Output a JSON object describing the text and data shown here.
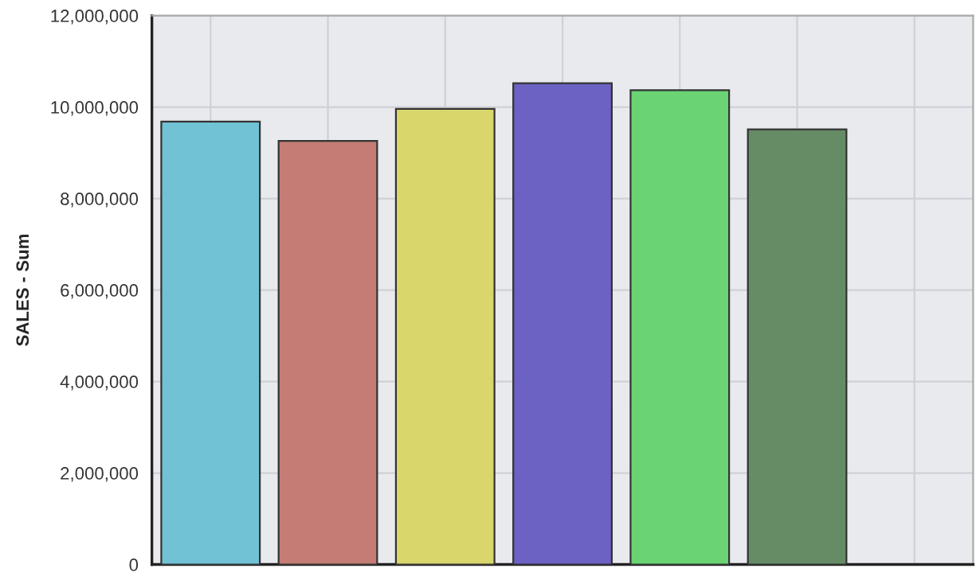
{
  "chart_data": {
    "type": "bar",
    "ylabel": "SALES - Sum",
    "categories": [
      null,
      null,
      null,
      null,
      null,
      null,
      null
    ],
    "values": [
      9680000,
      9260000,
      9960000,
      10520000,
      10370000,
      9510000,
      null
    ],
    "colors": [
      "#72c2d6",
      "#c47c74",
      "#d9d66c",
      "#6c62c4",
      "#6ad474",
      "#668c66",
      "#888888"
    ],
    "ylim": [
      0,
      12000000
    ],
    "yticks": [
      {
        "value": 0,
        "label": "0"
      },
      {
        "value": 2000000,
        "label": "2,000,000"
      },
      {
        "value": 4000000,
        "label": "4,000,000"
      },
      {
        "value": 6000000,
        "label": "6,000,000"
      },
      {
        "value": 8000000,
        "label": "8,000,000"
      },
      {
        "value": 10000000,
        "label": "10,000,000"
      },
      {
        "value": 12000000,
        "label": "12,000,000"
      }
    ],
    "grid": true
  }
}
